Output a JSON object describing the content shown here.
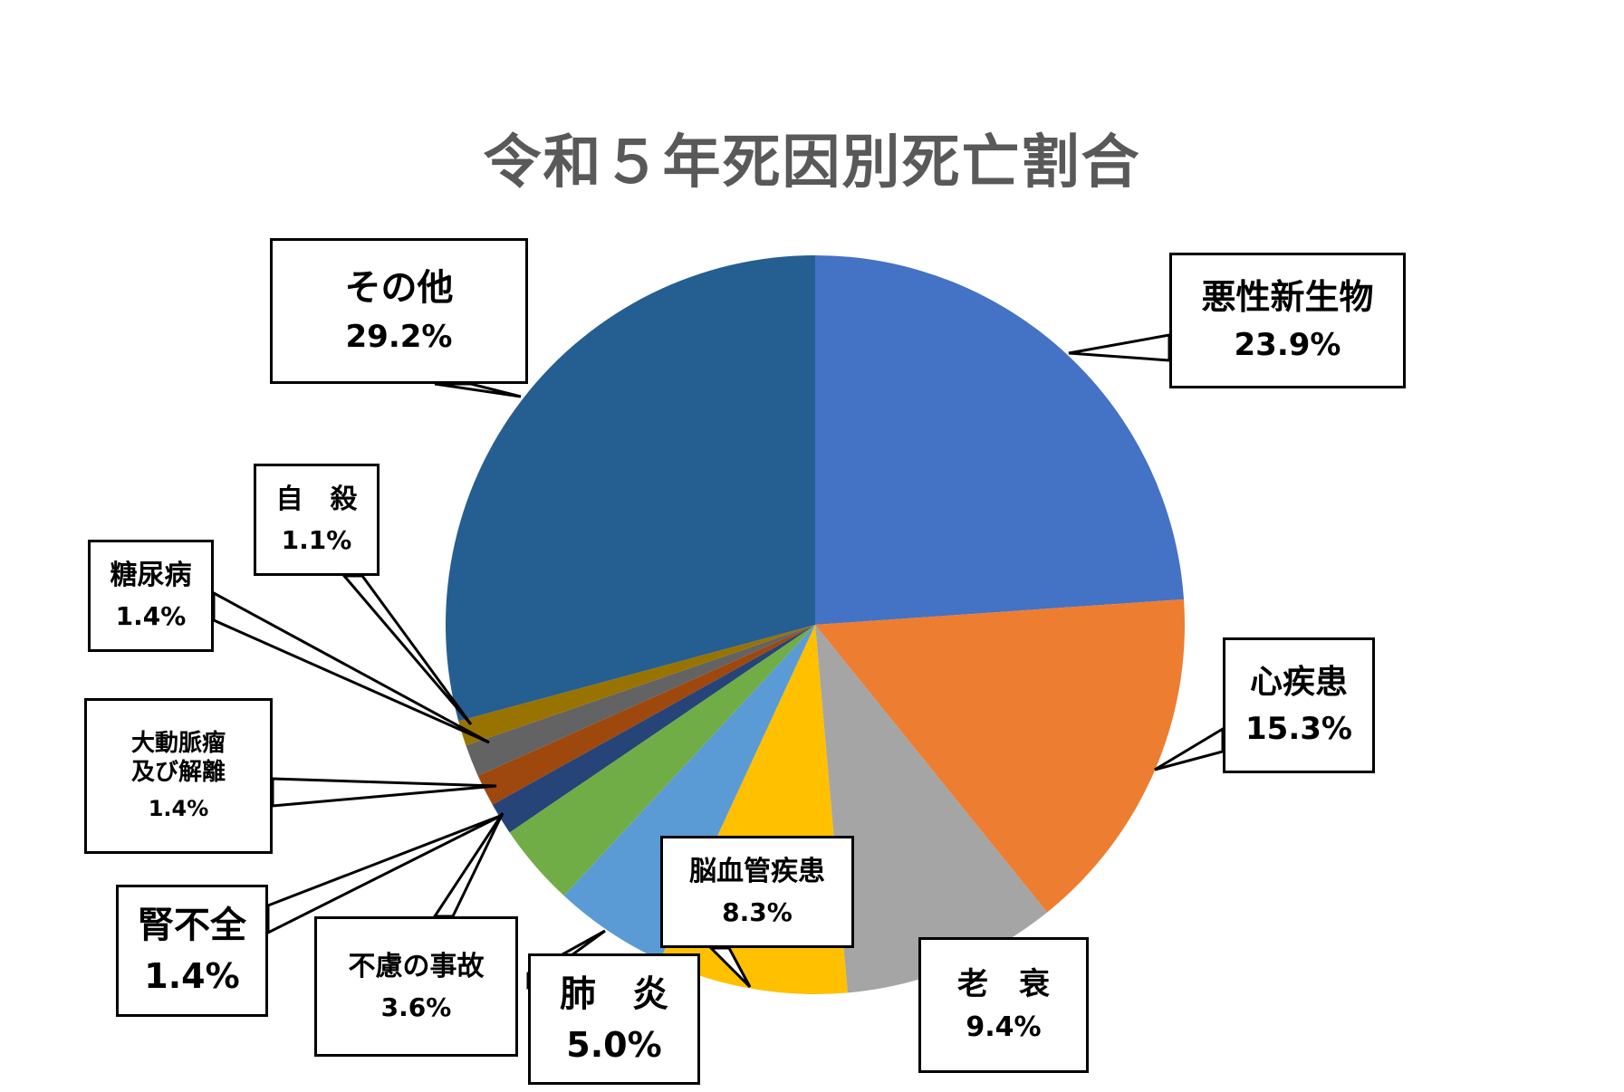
{
  "chart_data": {
    "type": "pie",
    "title": "令和５年死因別死亡割合",
    "slices": [
      {
        "label": "悪性新生物",
        "value": 23.9,
        "pct_text": "23.9%",
        "color": "#4472C4"
      },
      {
        "label": "心疾患",
        "value": 15.3,
        "pct_text": "15.3%",
        "color": "#ED7D31"
      },
      {
        "label": "老　衰",
        "value": 9.4,
        "pct_text": "9.4%",
        "color": "#A5A5A5"
      },
      {
        "label": "脳血管疾患",
        "value": 8.3,
        "pct_text": "8.3%",
        "color": "#FFC000"
      },
      {
        "label": "肺　炎",
        "value": 5.0,
        "pct_text": "5.0%",
        "color": "#5B9BD5"
      },
      {
        "label": "不慮の事故",
        "value": 3.6,
        "pct_text": "3.6%",
        "color": "#70AD47"
      },
      {
        "label": "腎不全",
        "value": 1.4,
        "pct_text": "1.4%",
        "color": "#264478"
      },
      {
        "label": "大動脈瘤\n及び解離",
        "value": 1.4,
        "pct_text": "1.4%",
        "color": "#9E480E"
      },
      {
        "label": "糖尿病",
        "value": 1.4,
        "pct_text": "1.4%",
        "color": "#636363"
      },
      {
        "label": "自　殺",
        "value": 1.1,
        "pct_text": "1.1%",
        "color": "#997300"
      },
      {
        "label": "その他",
        "value": 29.2,
        "pct_text": "29.2%",
        "color": "#255E91"
      }
    ],
    "start_angle": "12 o'clock",
    "direction": "clockwise",
    "legend": "none"
  }
}
